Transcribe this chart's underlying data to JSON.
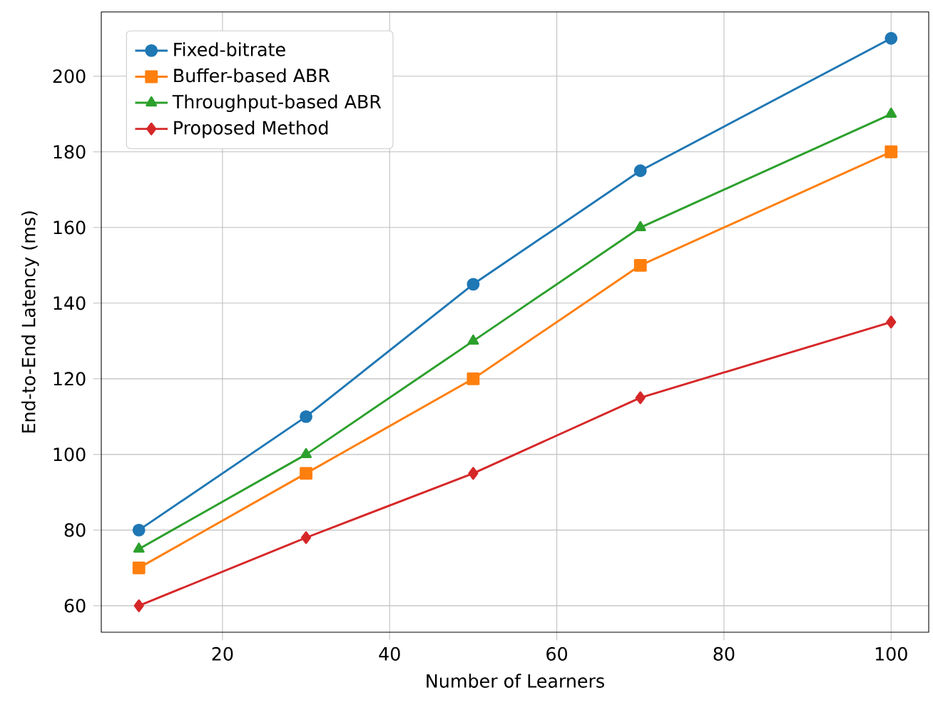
{
  "chart_data": {
    "type": "line",
    "xlabel": "Number of Learners",
    "ylabel": "End-to-End Latency (ms)",
    "x": [
      10,
      30,
      50,
      70,
      100
    ],
    "series": [
      {
        "name": "Fixed-bitrate",
        "color": "#1f77b4",
        "marker": "circle",
        "values": [
          80,
          110,
          145,
          175,
          210
        ]
      },
      {
        "name": "Buffer-based ABR",
        "color": "#ff7f0e",
        "marker": "square",
        "values": [
          70,
          95,
          120,
          150,
          180
        ]
      },
      {
        "name": "Throughput-based ABR",
        "color": "#2ca02c",
        "marker": "triangle",
        "values": [
          75,
          100,
          130,
          160,
          190
        ]
      },
      {
        "name": "Proposed Method",
        "color": "#d62728",
        "marker": "diamond",
        "values": [
          60,
          78,
          95,
          115,
          135
        ]
      }
    ],
    "xlim": [
      5.5,
      104.5
    ],
    "ylim": [
      53,
      217
    ],
    "xticks": [
      20,
      40,
      60,
      80,
      100
    ],
    "yticks": [
      60,
      80,
      100,
      120,
      140,
      160,
      180,
      200
    ],
    "grid": true,
    "legend": "top left",
    "line_style": "solid"
  }
}
